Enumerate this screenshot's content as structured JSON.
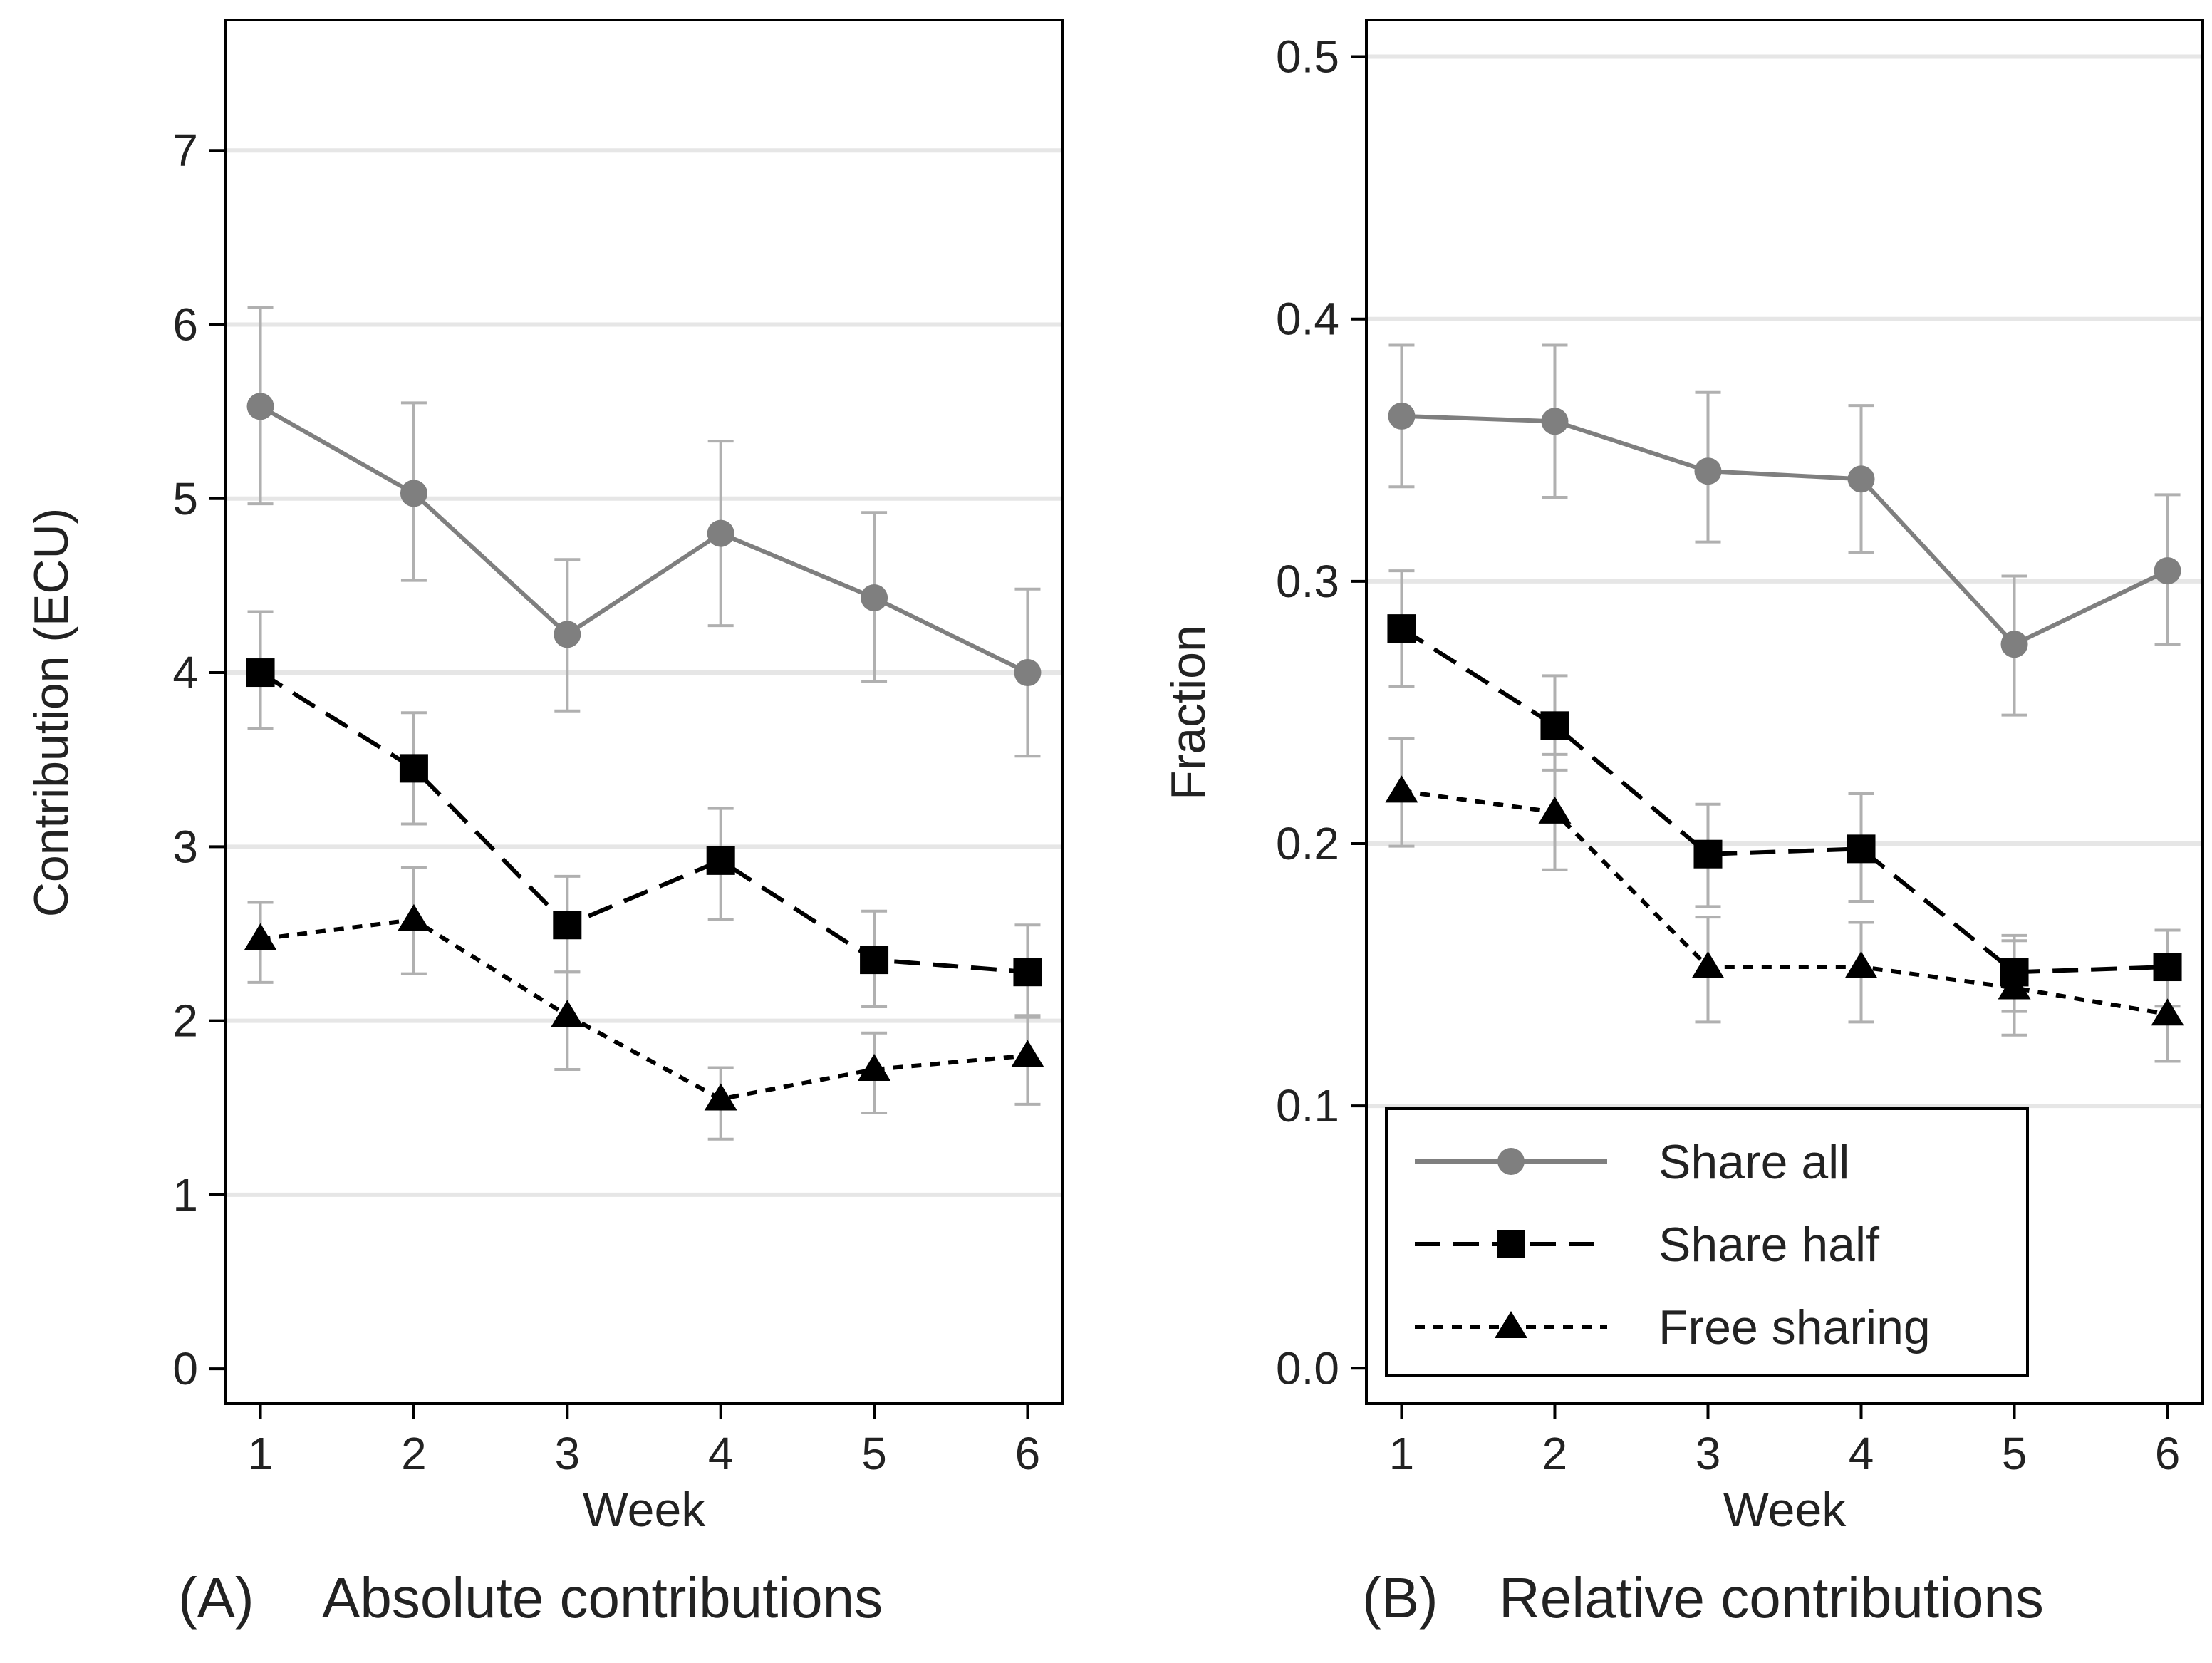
{
  "chart_data": [
    {
      "id": "A",
      "type": "line",
      "caption_letter": "(A)",
      "caption_text": "Absolute contributions",
      "xlabel": "Week",
      "ylabel": "Contribution (ECU)",
      "x": [
        1,
        2,
        3,
        4,
        5,
        6
      ],
      "xticks": [
        "1",
        "2",
        "3",
        "4",
        "5",
        "6"
      ],
      "xlim": [
        0.77,
        6.23
      ],
      "yticks": [
        "0",
        "1",
        "2",
        "3",
        "4",
        "5",
        "6",
        "7"
      ],
      "ylim": [
        -0.2,
        7.75
      ],
      "grid": true,
      "series": [
        {
          "name": "Share all",
          "style": "solid-circle",
          "values": [
            5.53,
            5.03,
            4.22,
            4.8,
            4.43,
            4.0
          ],
          "err_low": [
            4.97,
            4.53,
            3.78,
            4.27,
            3.95,
            3.52
          ],
          "err_high": [
            6.1,
            5.55,
            4.65,
            5.33,
            4.92,
            4.48
          ]
        },
        {
          "name": "Share half",
          "style": "dashed-square",
          "values": [
            4.0,
            3.45,
            2.55,
            2.92,
            2.35,
            2.28
          ],
          "err_low": [
            3.68,
            3.13,
            2.28,
            2.58,
            2.08,
            2.02
          ],
          "err_high": [
            4.35,
            3.77,
            2.83,
            3.22,
            2.63,
            2.55
          ]
        },
        {
          "name": "Free sharing",
          "style": "dotted-triangle",
          "values": [
            2.47,
            2.58,
            2.03,
            1.55,
            1.72,
            1.8
          ],
          "err_low": [
            2.22,
            2.27,
            1.72,
            1.32,
            1.47,
            1.52
          ],
          "err_high": [
            2.68,
            2.88,
            2.28,
            1.73,
            1.93,
            2.03
          ]
        }
      ]
    },
    {
      "id": "B",
      "type": "line",
      "caption_letter": "(B)",
      "caption_text": "Relative contributions",
      "xlabel": "Week",
      "ylabel": "Fraction",
      "x": [
        1,
        2,
        3,
        4,
        5,
        6
      ],
      "xticks": [
        "1",
        "2",
        "3",
        "4",
        "5",
        "6"
      ],
      "xlim": [
        0.77,
        6.23
      ],
      "yticks": [
        "0.0",
        "0.1",
        "0.2",
        "0.3",
        "0.4",
        "0.5"
      ],
      "ylim": [
        -0.0135,
        0.514
      ],
      "grid": true,
      "legend_position": "bottom-left",
      "series": [
        {
          "name": "Share all",
          "style": "solid-circle",
          "values": [
            0.363,
            0.361,
            0.342,
            0.339,
            0.276,
            0.304
          ],
          "err_low": [
            0.336,
            0.332,
            0.315,
            0.311,
            0.249,
            0.276
          ],
          "err_high": [
            0.39,
            0.39,
            0.372,
            0.367,
            0.302,
            0.333
          ]
        },
        {
          "name": "Share half",
          "style": "dashed-square",
          "values": [
            0.282,
            0.245,
            0.196,
            0.198,
            0.151,
            0.153
          ],
          "err_low": [
            0.26,
            0.228,
            0.176,
            0.178,
            0.136,
            0.138
          ],
          "err_high": [
            0.304,
            0.264,
            0.215,
            0.219,
            0.165,
            0.167
          ]
        },
        {
          "name": "Free sharing",
          "style": "dotted-triangle",
          "values": [
            0.22,
            0.212,
            0.153,
            0.153,
            0.145,
            0.135
          ],
          "err_low": [
            0.199,
            0.19,
            0.132,
            0.132,
            0.127,
            0.117
          ],
          "err_high": [
            0.24,
            0.234,
            0.172,
            0.17,
            0.163,
            0.155
          ]
        }
      ]
    }
  ],
  "colors": {
    "share_all": "#7f7f7f",
    "share_half": "#000000",
    "free_sharing": "#000000",
    "error_bar": "#b0b0b0",
    "grid": "#e6e6e6",
    "frame": "#000000"
  }
}
